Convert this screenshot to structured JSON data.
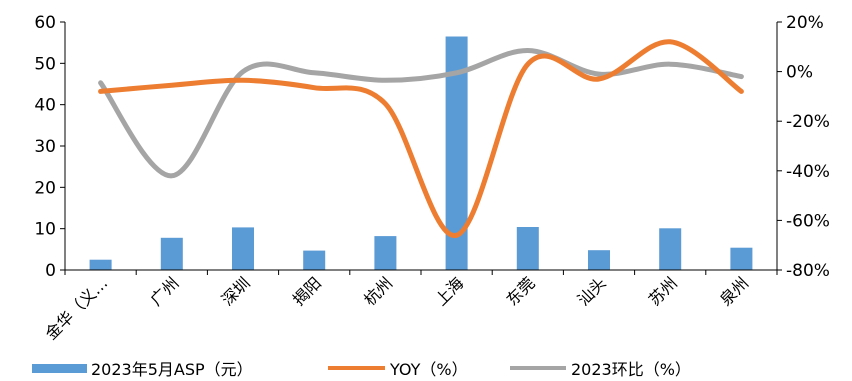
{
  "chart_data": {
    "type": "bar",
    "categories": [
      "金华（义…",
      "广州",
      "深圳",
      "揭阳",
      "杭州",
      "上海",
      "东莞",
      "汕头",
      "苏州",
      "泉州"
    ],
    "series": [
      {
        "name": "2023年5月ASP（元）",
        "type": "bar",
        "axis": "left",
        "color": "#5b9bd5",
        "values": [
          2.5,
          7.8,
          10.3,
          4.7,
          8.2,
          56.5,
          10.4,
          4.8,
          10.1,
          5.4
        ]
      },
      {
        "name": "YOY（%）",
        "type": "line",
        "axis": "right",
        "color": "#ed7d31",
        "values": [
          -8,
          -5.5,
          -3.5,
          -6.5,
          -13,
          -66,
          3,
          -3,
          12,
          -8
        ]
      },
      {
        "name": "2023环比（%）",
        "type": "line",
        "axis": "right",
        "color": "#a5a5a5",
        "values": [
          -4.5,
          -42,
          0,
          -0.5,
          -3.5,
          -0.5,
          8.5,
          -1,
          3,
          -2
        ]
      }
    ],
    "left_axis": {
      "min": 0,
      "max": 60,
      "ticks": [
        "0",
        "10",
        "20",
        "30",
        "40",
        "50",
        "60"
      ]
    },
    "right_axis": {
      "min": -80,
      "max": 20,
      "ticks": [
        "20%",
        "0%",
        "-20%",
        "-40%",
        "-60%",
        "-80%"
      ]
    },
    "legend_position": "bottom",
    "grid": false
  }
}
